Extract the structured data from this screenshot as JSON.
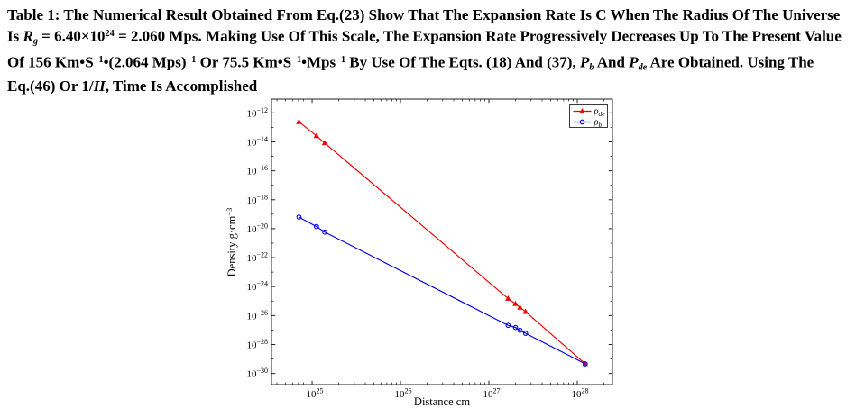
{
  "page": {
    "background": "#ffffff"
  },
  "caption": {
    "segments": [
      {
        "t": "Table 1: The Numerical Result Obtained From Eq.(23) Show That The Expansion Rate Is C When The Radius Of The Universe"
      },
      {
        "br": true
      },
      {
        "t": "Is "
      },
      {
        "t": "R",
        "i": true
      },
      {
        "t": "g",
        "i": true,
        "sub": true
      },
      {
        "t": " = 6.40×10"
      },
      {
        "t": "24",
        "sup": true
      },
      {
        "t": " = 2.060 Mps. Making Use Of This Scale, The Expansion Rate Progressively Decreases Up To The Present Value"
      },
      {
        "br": true
      },
      {
        "t": "Of 156 Km•S"
      },
      {
        "t": "−1",
        "sup": true
      },
      {
        "t": "•(2.064 Mps)"
      },
      {
        "t": "−1",
        "sup": true
      },
      {
        "t": " Or 75.5 Km•S"
      },
      {
        "t": "−1",
        "sup": true
      },
      {
        "t": "•Mps"
      },
      {
        "t": "−1",
        "sup": true
      },
      {
        "t": " By Use Of The Eqts. (18) And (37), "
      },
      {
        "t": "P",
        "i": true
      },
      {
        "t": "b",
        "i": true,
        "sub": true
      },
      {
        "t": " And "
      },
      {
        "t": "P",
        "i": true
      },
      {
        "t": "de",
        "i": true,
        "sub": true
      },
      {
        "t": " Are Obtained. Using The"
      },
      {
        "br": true
      },
      {
        "t": "Eq.(46) Or 1/"
      },
      {
        "t": "H",
        "i": true
      },
      {
        "t": ", Time Is Accomplished"
      }
    ]
  },
  "chart_data": {
    "type": "line",
    "title": "",
    "xlabel": "Distance cm",
    "ylabel": "Density g·cm⁻³",
    "ylabel_base": "Density g·cm",
    "ylabel_sup": "−3",
    "x_scale": "log",
    "y_scale": "log",
    "xlim": [
      3.47e+24,
      2.5e+28
    ],
    "ylim": [
      1.7e-31,
      9e-12
    ],
    "x_tick_exponents": [
      25,
      26,
      27,
      28
    ],
    "y_tick_exponents": [
      -12,
      -14,
      -16,
      -18,
      -20,
      -22,
      -24,
      -26,
      -28,
      -30
    ],
    "grid": false,
    "legend_position": "top-right",
    "frame_color": "#222222",
    "series": [
      {
        "name": "rho_de",
        "label_base": "ρ",
        "label_sub": "de",
        "color": "#f00000",
        "marker": "triangle-filled",
        "points": [
          [
            7.1e+24,
            2.4e-13
          ],
          [
            1.12e+25,
            2.6e-14
          ],
          [
            1.39e+25,
            8.3e-15
          ],
          [
            1.65e+27,
            1.5e-25
          ],
          [
            2e+27,
            6.4e-26
          ],
          [
            2.25e+27,
            3.6e-26
          ],
          [
            2.6e+27,
            1.85e-26
          ],
          [
            1.23e+28,
            4.6e-30
          ]
        ]
      },
      {
        "name": "rho_b",
        "label_base": "ρ",
        "label_sub": "b",
        "color": "#0000f0",
        "marker": "circle-open",
        "points": [
          [
            7.1e+24,
            6.3e-20
          ],
          [
            1.12e+25,
            1.4e-20
          ],
          [
            1.39e+25,
            5.8e-21
          ],
          [
            1.65e+27,
            2.1e-27
          ],
          [
            2e+27,
            1.5e-27
          ],
          [
            2.25e+27,
            9.5e-28
          ],
          [
            2.6e+27,
            5.9e-28
          ],
          [
            1.23e+28,
            4.6e-30
          ]
        ]
      }
    ]
  }
}
